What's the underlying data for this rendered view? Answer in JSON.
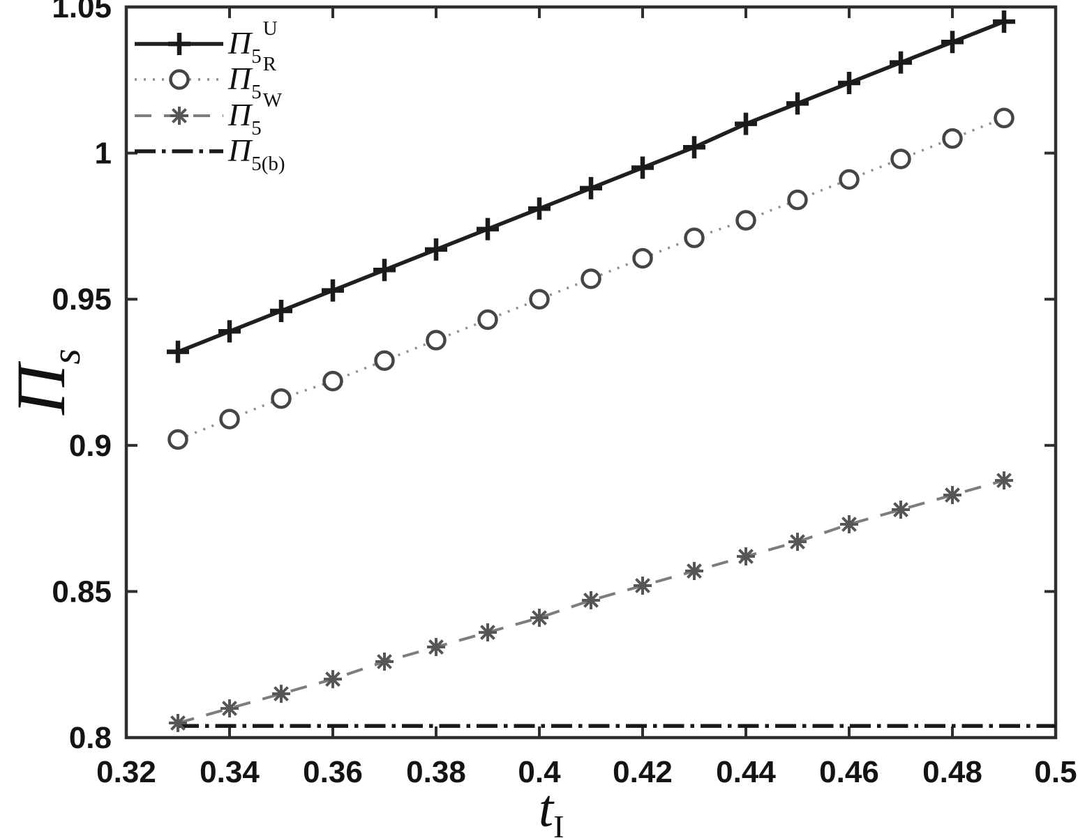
{
  "figure": {
    "background": "#ffffff",
    "axis_color": "#2e2e2e",
    "text_color": "#141414"
  },
  "chart_data": {
    "type": "line",
    "title": "",
    "xlabel": {
      "base": "t",
      "sub": "I"
    },
    "ylabel": {
      "base": "Π",
      "sub": "s"
    },
    "xlim": [
      0.32,
      0.5
    ],
    "ylim": [
      0.8,
      1.05
    ],
    "grid": false,
    "legend_position": "top-left",
    "x_ticks": [
      0.32,
      0.34,
      0.36,
      0.38,
      0.4,
      0.42,
      0.44,
      0.46,
      0.48,
      0.5
    ],
    "x_tick_labels": [
      "0.32",
      "0.34",
      "0.36",
      "0.38",
      "0.4",
      "0.42",
      "0.44",
      "0.46",
      "0.48",
      "0.5"
    ],
    "y_ticks": [
      0.8,
      0.85,
      0.9,
      0.95,
      1.0,
      1.05
    ],
    "y_tick_labels": [
      "0.8",
      "0.85",
      "0.9",
      "0.95",
      "1",
      "1.05"
    ],
    "series": [
      {
        "name": "Pi5U",
        "label": {
          "base": "Π",
          "sub": "5",
          "sup": "U"
        },
        "line_style": "solid",
        "marker": "plus",
        "line_color": "#1f1f1f",
        "marker_color": "#1b1b1b",
        "x": [
          0.33,
          0.34,
          0.35,
          0.36,
          0.37,
          0.38,
          0.39,
          0.4,
          0.41,
          0.42,
          0.43,
          0.44,
          0.45,
          0.46,
          0.47,
          0.48,
          0.49
        ],
        "values": [
          0.932,
          0.939,
          0.946,
          0.953,
          0.96,
          0.967,
          0.974,
          0.981,
          0.988,
          0.995,
          1.002,
          1.01,
          1.017,
          1.024,
          1.031,
          1.038,
          1.045
        ]
      },
      {
        "name": "Pi5R",
        "label": {
          "base": "Π",
          "sub": "5",
          "sup": "R"
        },
        "line_style": "dotted",
        "marker": "circle",
        "line_color": "#8f8f8f",
        "marker_color": "#454545",
        "x": [
          0.33,
          0.34,
          0.35,
          0.36,
          0.37,
          0.38,
          0.39,
          0.4,
          0.41,
          0.42,
          0.43,
          0.44,
          0.45,
          0.46,
          0.47,
          0.48,
          0.49
        ],
        "values": [
          0.902,
          0.909,
          0.916,
          0.922,
          0.929,
          0.936,
          0.943,
          0.95,
          0.957,
          0.964,
          0.971,
          0.977,
          0.984,
          0.991,
          0.998,
          1.005,
          1.012
        ]
      },
      {
        "name": "Pi5W",
        "label": {
          "base": "Π",
          "sub": "5",
          "sup": "W"
        },
        "line_style": "dashed",
        "marker": "asterisk",
        "line_color": "#7d7d7d",
        "marker_color": "#565656",
        "x": [
          0.33,
          0.34,
          0.35,
          0.36,
          0.37,
          0.38,
          0.39,
          0.4,
          0.41,
          0.42,
          0.43,
          0.44,
          0.45,
          0.46,
          0.47,
          0.48,
          0.49
        ],
        "values": [
          0.805,
          0.81,
          0.815,
          0.82,
          0.826,
          0.831,
          0.836,
          0.841,
          0.847,
          0.852,
          0.857,
          0.862,
          0.867,
          0.873,
          0.878,
          0.883,
          0.888
        ]
      },
      {
        "name": "Pi5b",
        "label": {
          "base": "Π",
          "sub": "5(b)",
          "sup": ""
        },
        "line_style": "dashdot",
        "marker": "none",
        "line_color": "#1a1a1a",
        "marker_color": "#1a1a1a",
        "x": [
          0.33,
          0.5
        ],
        "values": [
          0.804,
          0.804
        ]
      }
    ]
  }
}
